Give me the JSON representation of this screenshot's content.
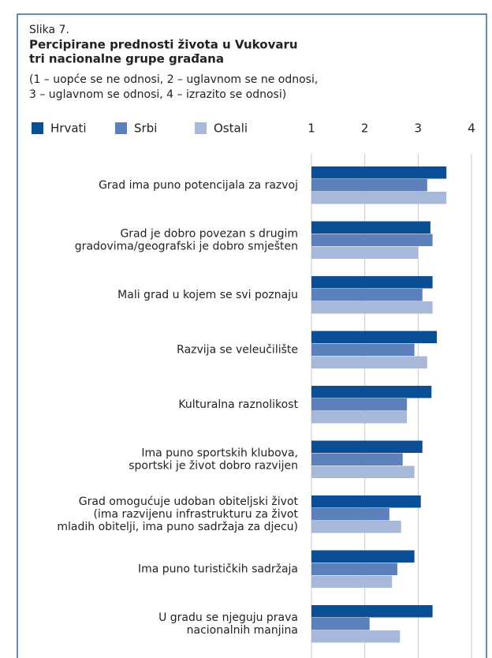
{
  "chart_data": {
    "type": "hbar",
    "figure_label": "Slika 7.",
    "title": [
      "Percipirane prednosti života u Vukovaru",
      "tri nacionalne grupe građana"
    ],
    "subtitle": [
      "(1 – uopće se ne odnosi, 2 – uglavnom se ne odnosi,",
      "3 – uglavnom se odnosi, 4 – izrazito se odnosi)"
    ],
    "categories": [
      [
        "Grad ima puno potencijala za razvoj"
      ],
      [
        "Grad je dobro povezan s drugim",
        "gradovima/geografski je dobro smješten"
      ],
      [
        "Mali grad u kojem se svi poznaju"
      ],
      [
        "Razvija se veleučilište"
      ],
      [
        "Kulturalna raznolikost"
      ],
      [
        "Ima puno sportskih klubova,",
        "sportski je život dobro razvijen"
      ],
      [
        "Grad omogućuje udoban obiteljski život",
        "(ima razvijenu infrastrukturu za život",
        "mladih obitelji, ima puno sadržaja za djecu)"
      ],
      [
        "Ima puno turističkih sadržaja"
      ],
      [
        "U gradu se njeguju prava",
        "nacionalnih manjina"
      ]
    ],
    "series": [
      {
        "name": "Hrvati",
        "color": "#0a4f96",
        "values": [
          3.53,
          3.23,
          3.27,
          3.35,
          3.25,
          3.08,
          3.05,
          2.93,
          3.27
        ]
      },
      {
        "name": "Srbi",
        "color": "#5b80bb",
        "values": [
          3.17,
          3.27,
          3.08,
          2.93,
          2.79,
          2.71,
          2.46,
          2.61,
          2.09
        ]
      },
      {
        "name": "Ostali",
        "color": "#a7b8db",
        "values": [
          3.53,
          3.0,
          3.27,
          3.17,
          2.79,
          2.93,
          2.68,
          2.51,
          2.66
        ]
      }
    ],
    "xlim": [
      1,
      4
    ],
    "xticks": [
      1,
      2,
      3,
      4
    ],
    "grid": true
  }
}
